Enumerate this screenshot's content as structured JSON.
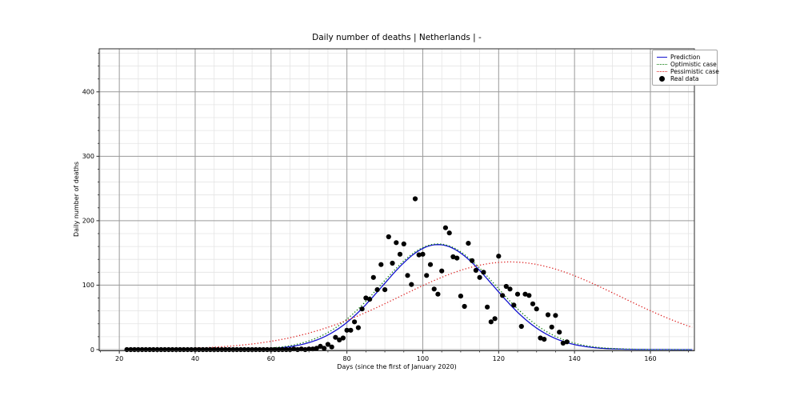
{
  "chart_data": {
    "type": "line+scatter",
    "title": "Daily number of deaths | Netherlands | -",
    "xlabel": "Days (since the first of January 2020)",
    "ylabel": "Daily number of deaths",
    "xlim": [
      14.7,
      171.6
    ],
    "ylim": [
      -1.9,
      466.8
    ],
    "xticks": [
      20,
      40,
      60,
      80,
      100,
      120,
      140,
      160
    ],
    "yticks": [
      0,
      100,
      200,
      300,
      400
    ],
    "x_minor_step": 5,
    "y_minor_step": 20,
    "grid": "both",
    "legend": [
      "Prediction",
      "Optimistic case",
      "Pessimistic case",
      "Real data"
    ],
    "legend_position": "upper right",
    "series": [
      {
        "name": "Prediction",
        "type": "line",
        "style": "solid",
        "color": "#1212cf",
        "model": "gaussian",
        "peak_day": 104,
        "peak_value": 163,
        "sigma": 14.6,
        "domain": [
          22,
          171
        ]
      },
      {
        "name": "Optimistic case",
        "type": "line",
        "style": "dotted",
        "color": "#0a7a0a",
        "model": "gaussian",
        "peak_day": 104,
        "peak_value": 164,
        "sigma": 15.2,
        "domain": [
          22,
          171
        ]
      },
      {
        "name": "Pessimistic case",
        "type": "line",
        "style": "dotted",
        "color": "#dd2222",
        "model": "gaussian",
        "peak_day": 123,
        "peak_value": 136,
        "sigma": 29,
        "domain": [
          22,
          171
        ]
      },
      {
        "name": "Real data",
        "type": "scatter",
        "color": "#000000",
        "marker_radius": 3.1,
        "points": [
          [
            22,
            0
          ],
          [
            23,
            0
          ],
          [
            24,
            0
          ],
          [
            25,
            0
          ],
          [
            26,
            0
          ],
          [
            27,
            0
          ],
          [
            28,
            0
          ],
          [
            29,
            0
          ],
          [
            30,
            0
          ],
          [
            31,
            0
          ],
          [
            32,
            0
          ],
          [
            33,
            0
          ],
          [
            34,
            0
          ],
          [
            35,
            0
          ],
          [
            36,
            0
          ],
          [
            37,
            0
          ],
          [
            38,
            0
          ],
          [
            39,
            0
          ],
          [
            40,
            0
          ],
          [
            41,
            0
          ],
          [
            42,
            0
          ],
          [
            43,
            0
          ],
          [
            44,
            0
          ],
          [
            45,
            0
          ],
          [
            46,
            0
          ],
          [
            47,
            0
          ],
          [
            48,
            0
          ],
          [
            49,
            0
          ],
          [
            50,
            0
          ],
          [
            51,
            0
          ],
          [
            52,
            0
          ],
          [
            53,
            0
          ],
          [
            54,
            0
          ],
          [
            55,
            0
          ],
          [
            56,
            0
          ],
          [
            57,
            0
          ],
          [
            58,
            0
          ],
          [
            59,
            0
          ],
          [
            60,
            0
          ],
          [
            61,
            0
          ],
          [
            62,
            0
          ],
          [
            63,
            0
          ],
          [
            64,
            0
          ],
          [
            65,
            0
          ],
          [
            66,
            1
          ],
          [
            67,
            0
          ],
          [
            68,
            1
          ],
          [
            69,
            0
          ],
          [
            70,
            1
          ],
          [
            71,
            1
          ],
          [
            72,
            2
          ],
          [
            73,
            5
          ],
          [
            74,
            2
          ],
          [
            75,
            8
          ],
          [
            76,
            4
          ],
          [
            77,
            19
          ],
          [
            78,
            15
          ],
          [
            79,
            18
          ],
          [
            80,
            30
          ],
          [
            81,
            30
          ],
          [
            82,
            43
          ],
          [
            83,
            34
          ],
          [
            84,
            63
          ],
          [
            85,
            80
          ],
          [
            86,
            78
          ],
          [
            87,
            112
          ],
          [
            88,
            93
          ],
          [
            89,
            132
          ],
          [
            90,
            93
          ],
          [
            91,
            175
          ],
          [
            92,
            134
          ],
          [
            93,
            166
          ],
          [
            94,
            148
          ],
          [
            95,
            164
          ],
          [
            96,
            115
          ],
          [
            97,
            101
          ],
          [
            98,
            234
          ],
          [
            99,
            147
          ],
          [
            100,
            148
          ],
          [
            101,
            115
          ],
          [
            102,
            132
          ],
          [
            103,
            94
          ],
          [
            104,
            86
          ],
          [
            105,
            122
          ],
          [
            106,
            189
          ],
          [
            107,
            181
          ],
          [
            108,
            144
          ],
          [
            109,
            142
          ],
          [
            110,
            83
          ],
          [
            111,
            67
          ],
          [
            112,
            165
          ],
          [
            113,
            138
          ],
          [
            114,
            123
          ],
          [
            115,
            112
          ],
          [
            116,
            120
          ],
          [
            117,
            66
          ],
          [
            118,
            43
          ],
          [
            119,
            48
          ],
          [
            120,
            145
          ],
          [
            121,
            84
          ],
          [
            122,
            98
          ],
          [
            123,
            94
          ],
          [
            124,
            69
          ],
          [
            125,
            86
          ],
          [
            126,
            36
          ],
          [
            127,
            86
          ],
          [
            128,
            84
          ],
          [
            129,
            71
          ],
          [
            130,
            63
          ],
          [
            131,
            18
          ],
          [
            132,
            16
          ],
          [
            133,
            54
          ],
          [
            134,
            35
          ],
          [
            135,
            53
          ],
          [
            136,
            27
          ],
          [
            137,
            10
          ],
          [
            138,
            12
          ]
        ]
      }
    ],
    "colors": {
      "grid_major": "#9a9a9a",
      "grid_minor": "#e4e4e4",
      "spine": "#2a2a2a",
      "text": "#000000",
      "background": "#ffffff"
    }
  }
}
